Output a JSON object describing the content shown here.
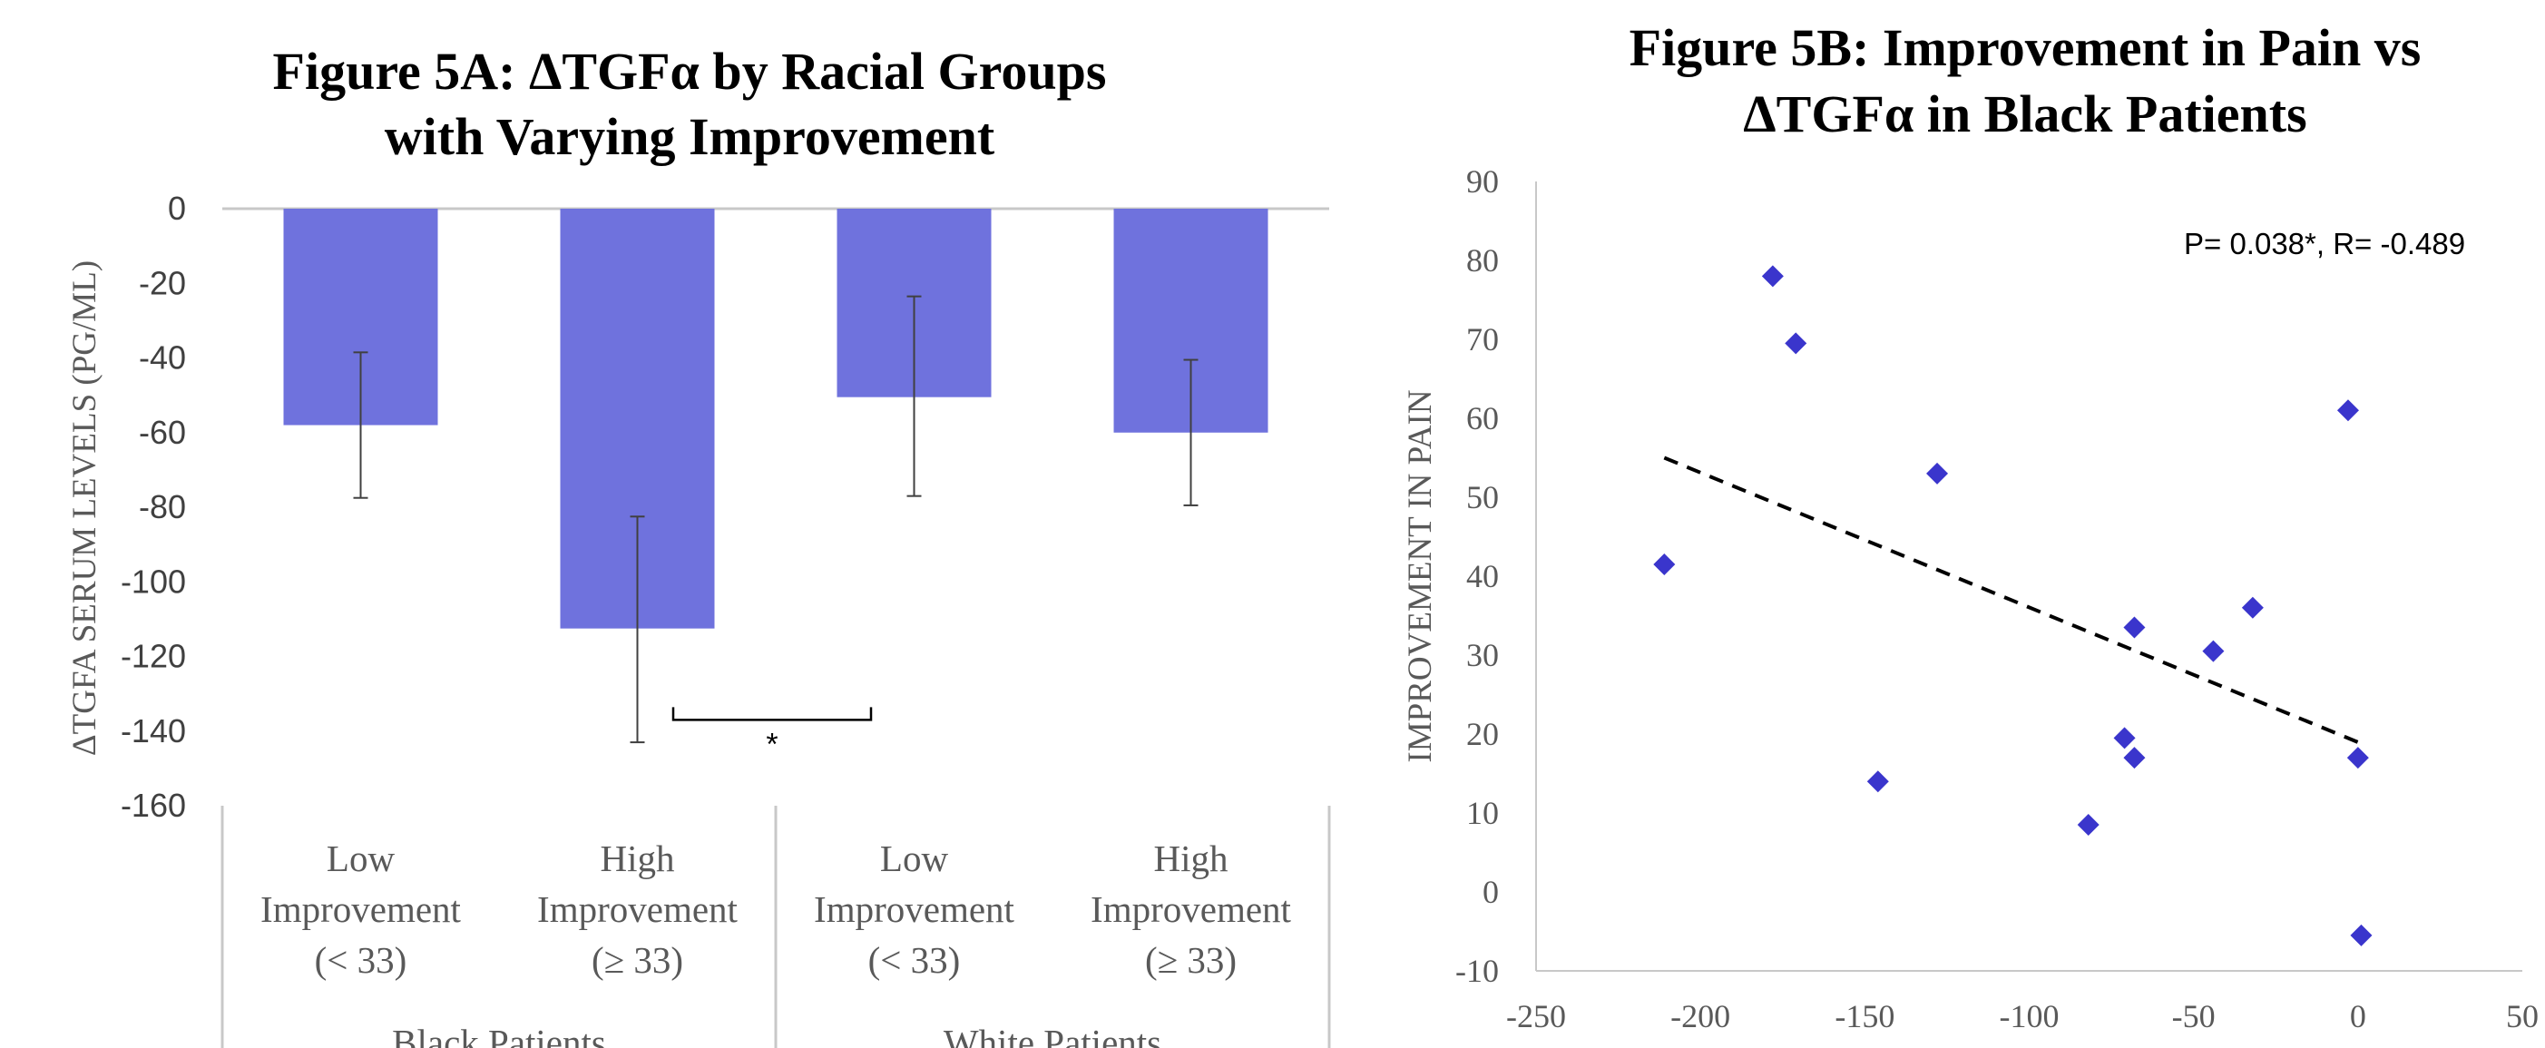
{
  "chart_data": [
    {
      "type": "bar",
      "title": [
        "Figure 5A: ΔTGFα by Racial Groups",
        "with Varying Improvement"
      ],
      "ylabel": "ΔTGFA SERUM LEVELS (PG/ML)",
      "ylim": [
        -160,
        0
      ],
      "yticks": [
        "0",
        "-20",
        "-40",
        "-60",
        "-80",
        "-100",
        "-120",
        "-140",
        "-160"
      ],
      "categories": [
        {
          "lines": [
            "Low",
            "Improvement",
            "(< 33)"
          ],
          "group": "Black Patients"
        },
        {
          "lines": [
            "High",
            "Improvement",
            "(≥ 33)"
          ],
          "group": "Black Patients"
        },
        {
          "lines": [
            "Low",
            "Improvement",
            "(< 33)"
          ],
          "group": "White Patients"
        },
        {
          "lines": [
            "High",
            "Improvement",
            "(≥ 33)"
          ],
          "group": "White Patients"
        }
      ],
      "groups": [
        "Black Patients",
        "White Patients"
      ],
      "values": [
        -58,
        -112.5,
        -50.5,
        -60
      ],
      "error_bars": [
        {
          "low": -77.5,
          "high": -38.5
        },
        {
          "low": -143,
          "high": -82.5
        },
        {
          "low": -77,
          "high": -23.5
        },
        {
          "low": -79.5,
          "high": -40.5
        }
      ],
      "significance": {
        "between": [
          1,
          2
        ],
        "label": "*"
      },
      "bar_color": "#6f72dd",
      "grid": false
    },
    {
      "type": "scatter",
      "title": [
        "Figure 5B: Improvement in Pain vs",
        "ΔTGFα in Black Patients"
      ],
      "xlabel": "",
      "ylabel": "IMPROVEMENT IN PAIN",
      "xlim": [
        -250,
        50
      ],
      "ylim": [
        -10,
        90
      ],
      "xticks": [
        "-250",
        "-200",
        "-150",
        "-100",
        "-50",
        "0",
        "50"
      ],
      "yticks": [
        "90",
        "80",
        "70",
        "60",
        "50",
        "40",
        "30",
        "20",
        "10",
        "0",
        "-10"
      ],
      "points": [
        {
          "x": -178,
          "y": 78
        },
        {
          "x": -171,
          "y": 69.5
        },
        {
          "x": -211,
          "y": 41.5
        },
        {
          "x": -128,
          "y": 53
        },
        {
          "x": -146,
          "y": 14
        },
        {
          "x": -82,
          "y": 8.5
        },
        {
          "x": -71,
          "y": 19.5
        },
        {
          "x": -68,
          "y": 17
        },
        {
          "x": -68,
          "y": 33.5
        },
        {
          "x": -44,
          "y": 30.5
        },
        {
          "x": -32,
          "y": 36
        },
        {
          "x": -3,
          "y": 61
        },
        {
          "x": 0,
          "y": 17
        },
        {
          "x": 1,
          "y": -5.5
        }
      ],
      "trendline": {
        "x": [
          -211,
          1
        ],
        "y": [
          55,
          18.8
        ],
        "style": "dashed"
      },
      "annotation": "P= 0.038*, R= -0.489",
      "marker_color": "#3a35cc",
      "grid": false
    }
  ]
}
